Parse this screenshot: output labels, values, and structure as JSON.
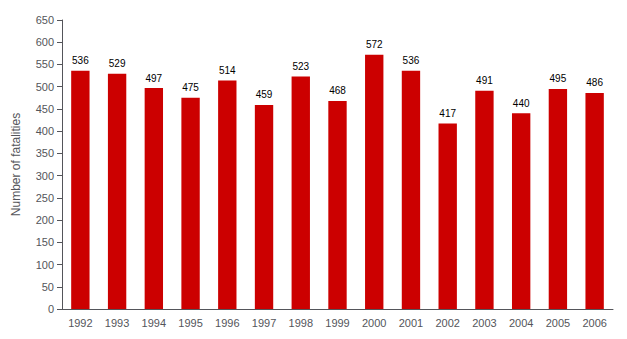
{
  "chart_data": {
    "type": "bar",
    "ylabel": "Number of fatalities",
    "categories": [
      "1992",
      "1993",
      "1994",
      "1995",
      "1996",
      "1997",
      "1998",
      "1999",
      "2000",
      "2001",
      "2002",
      "2003",
      "2004",
      "2005",
      "2006"
    ],
    "values": [
      536,
      529,
      497,
      475,
      514,
      459,
      523,
      468,
      572,
      536,
      417,
      491,
      440,
      495,
      486
    ],
    "color": "#cc0000",
    "ylim": [
      0,
      650
    ],
    "yticks": [
      0,
      50,
      100,
      150,
      200,
      250,
      300,
      350,
      400,
      450,
      500,
      550,
      600,
      650
    ],
    "grid": false,
    "data_labels": true
  }
}
